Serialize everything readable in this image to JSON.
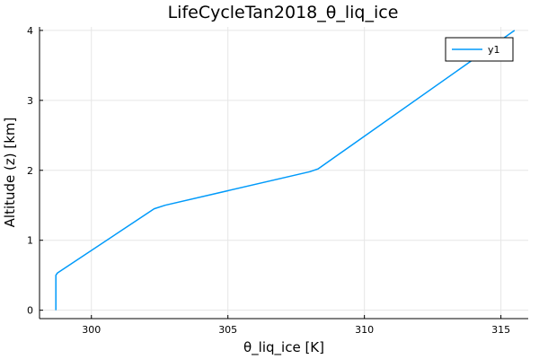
{
  "chart_data": {
    "type": "line",
    "title": "LifeCycleTan2018_θ_liq_ice",
    "xlabel": "θ_liq_ice [K]",
    "ylabel": "Altitude (z) [km]",
    "xlim": [
      298.1,
      316.0
    ],
    "ylim": [
      -0.12,
      4.05
    ],
    "xticks": [
      300,
      305,
      310,
      315
    ],
    "xtick_labels": [
      "300",
      "305",
      "310",
      "315"
    ],
    "yticks": [
      0,
      1,
      2,
      3,
      4
    ],
    "ytick_labels": [
      "0",
      "1",
      "2",
      "3",
      "4"
    ],
    "grid": true,
    "legend_position": "top-right",
    "series": [
      {
        "name": "y1",
        "color": "#009AFA",
        "x": [
          298.7,
          298.7,
          298.75,
          302.3,
          302.7,
          308.0,
          308.3,
          315.5
        ],
        "y": [
          0.0,
          0.5,
          0.53,
          1.45,
          1.5,
          1.98,
          2.02,
          4.0
        ]
      }
    ]
  }
}
